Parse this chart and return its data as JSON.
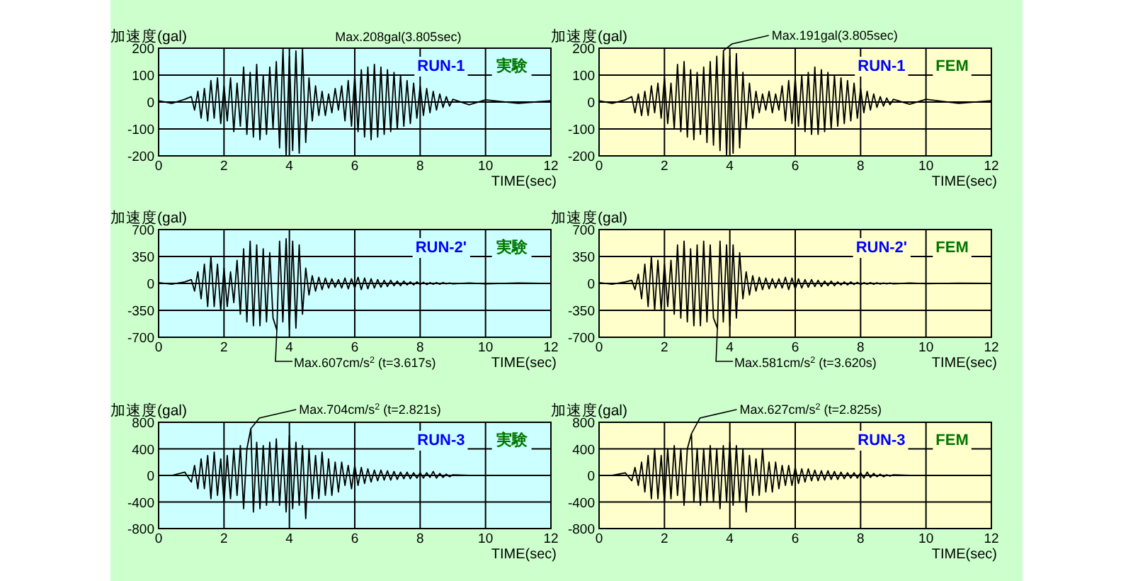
{
  "chart_data": [
    {
      "type": "line",
      "xlabel": "TIME(sec)",
      "ylabel": "加速度(gal)",
      "xlim": [
        0,
        12
      ],
      "xticks": [
        0,
        2,
        4,
        6,
        8,
        10,
        12
      ],
      "ylim": [
        -200,
        200
      ],
      "yticks": [
        -200,
        -100,
        0,
        100,
        200
      ],
      "grid": true,
      "annotations": [
        "RUN-1",
        "実験",
        "Max.208gal(3.805sec)"
      ],
      "x": [
        0,
        0.4,
        0.8,
        1,
        1.1,
        1.2,
        1.3,
        1.4,
        1.5,
        1.6,
        1.7,
        1.8,
        1.9,
        2,
        2.1,
        2.2,
        2.3,
        2.4,
        2.5,
        2.6,
        2.7,
        2.8,
        2.9,
        3,
        3.1,
        3.2,
        3.3,
        3.4,
        3.5,
        3.6,
        3.7,
        3.805,
        3.9,
        4,
        4.1,
        4.2,
        4.3,
        4.4,
        4.5,
        4.6,
        4.7,
        4.8,
        4.9,
        5,
        5.1,
        5.2,
        5.3,
        5.4,
        5.5,
        5.6,
        5.7,
        5.8,
        5.9,
        6,
        6.1,
        6.2,
        6.3,
        6.4,
        6.5,
        6.6,
        6.7,
        6.8,
        6.9,
        7,
        7.1,
        7.2,
        7.3,
        7.4,
        7.5,
        7.6,
        7.7,
        7.8,
        7.9,
        8,
        8.1,
        8.2,
        8.3,
        8.4,
        8.5,
        8.6,
        8.7,
        8.8,
        8.9,
        9,
        9.5,
        10,
        11,
        12
      ],
      "series": [
        {
          "color": "#000000",
          "values": [
            5,
            -5,
            10,
            20,
            -30,
            40,
            -60,
            50,
            -70,
            80,
            -60,
            90,
            -80,
            60,
            -70,
            90,
            -110,
            70,
            -90,
            130,
            -120,
            110,
            -130,
            140,
            -140,
            100,
            -120,
            130,
            -100,
            150,
            -170,
            200,
            -200,
            170,
            -180,
            190,
            -190,
            200,
            -150,
            90,
            -70,
            60,
            -50,
            40,
            -50,
            30,
            -40,
            50,
            -30,
            60,
            -70,
            80,
            -90,
            100,
            -110,
            120,
            -130,
            130,
            -140,
            140,
            -130,
            130,
            -120,
            120,
            -110,
            110,
            -100,
            100,
            -90,
            80,
            -80,
            70,
            -60,
            60,
            -50,
            50,
            -40,
            40,
            -30,
            30,
            -20,
            20,
            -15,
            10,
            -10,
            8,
            -5,
            5
          ]
        }
      ]
    },
    {
      "type": "line",
      "xlabel": "TIME(sec)",
      "ylabel": "加速度(gal)",
      "xlim": [
        0,
        12
      ],
      "xticks": [
        0,
        2,
        4,
        6,
        8,
        10,
        12
      ],
      "ylim": [
        -200,
        200
      ],
      "yticks": [
        -200,
        -100,
        0,
        100,
        200
      ],
      "grid": true,
      "annotations": [
        "RUN-1",
        "FEM",
        {
          "text": "Max.191gal(3.805sec)",
          "x": 3.805,
          "y": 191
        }
      ],
      "x": [
        0,
        0.4,
        0.8,
        1,
        1.1,
        1.2,
        1.3,
        1.4,
        1.5,
        1.6,
        1.7,
        1.8,
        1.9,
        2,
        2.1,
        2.2,
        2.3,
        2.4,
        2.5,
        2.6,
        2.7,
        2.8,
        2.9,
        3,
        3.1,
        3.2,
        3.3,
        3.4,
        3.5,
        3.6,
        3.7,
        3.805,
        3.9,
        4,
        4.1,
        4.2,
        4.3,
        4.4,
        4.5,
        4.6,
        4.7,
        4.8,
        4.9,
        5,
        5.1,
        5.2,
        5.3,
        5.4,
        5.5,
        5.6,
        5.7,
        5.8,
        5.9,
        6,
        6.1,
        6.2,
        6.3,
        6.4,
        6.5,
        6.6,
        6.7,
        6.8,
        6.9,
        7,
        7.1,
        7.2,
        7.3,
        7.4,
        7.5,
        7.6,
        7.7,
        7.8,
        7.9,
        8,
        8.1,
        8.2,
        8.3,
        8.4,
        8.5,
        8.6,
        8.7,
        8.8,
        8.9,
        9,
        9.5,
        10,
        11,
        12
      ],
      "series": [
        {
          "color": "#000000",
          "values": [
            5,
            -5,
            8,
            20,
            -40,
            30,
            -50,
            40,
            -50,
            60,
            -40,
            70,
            -60,
            90,
            -80,
            70,
            -100,
            140,
            -110,
            150,
            -130,
            120,
            -140,
            110,
            -120,
            130,
            -150,
            150,
            -160,
            170,
            -180,
            191,
            -200,
            170,
            -190,
            180,
            -170,
            110,
            -100,
            70,
            -60,
            40,
            -40,
            30,
            -30,
            40,
            -40,
            30,
            -30,
            60,
            -70,
            80,
            -80,
            90,
            -90,
            100,
            -110,
            110,
            -120,
            130,
            -120,
            120,
            -110,
            110,
            -100,
            100,
            -90,
            90,
            -80,
            80,
            -70,
            70,
            -60,
            50,
            -40,
            40,
            -30,
            30,
            -20,
            20,
            -15,
            15,
            -10,
            10,
            -8,
            10,
            -5,
            5
          ]
        }
      ]
    },
    {
      "type": "line",
      "xlabel": "TIME(sec)",
      "ylabel": "加速度(gal)",
      "xlim": [
        0,
        12
      ],
      "xticks": [
        0,
        2,
        4,
        6,
        8,
        10,
        12
      ],
      "ylim": [
        -700,
        700
      ],
      "yticks": [
        -700,
        -350,
        0,
        350,
        700
      ],
      "grid": true,
      "annotations": [
        "RUN-2'",
        "実験",
        {
          "text": "Max.607cm/s$^{2}$ (t=3.617s)",
          "x": 3.617,
          "y": -607
        }
      ],
      "x": [
        0,
        0.4,
        0.8,
        1,
        1.1,
        1.2,
        1.3,
        1.4,
        1.5,
        1.6,
        1.7,
        1.8,
        1.9,
        2,
        2.1,
        2.2,
        2.3,
        2.4,
        2.5,
        2.6,
        2.7,
        2.8,
        2.9,
        3,
        3.1,
        3.2,
        3.3,
        3.4,
        3.5,
        3.617,
        3.7,
        3.8,
        3.9,
        4,
        4.1,
        4.2,
        4.3,
        4.4,
        4.5,
        4.6,
        4.7,
        4.8,
        4.9,
        5,
        5.1,
        5.2,
        5.3,
        5.4,
        5.5,
        5.6,
        5.7,
        5.8,
        5.9,
        6,
        6.1,
        6.2,
        6.3,
        6.4,
        6.5,
        6.6,
        6.7,
        6.8,
        6.9,
        7,
        7.1,
        7.2,
        7.3,
        7.4,
        7.5,
        7.6,
        7.7,
        7.8,
        7.9,
        8,
        8.1,
        8.2,
        8.3,
        8.4,
        8.5,
        8.6,
        8.7,
        8.8,
        8.9,
        9,
        9.5,
        10,
        11,
        12
      ],
      "series": [
        {
          "color": "#000000",
          "values": [
            10,
            -10,
            20,
            50,
            -100,
            150,
            -200,
            250,
            -300,
            350,
            -300,
            250,
            -350,
            200,
            -300,
            150,
            -250,
            300,
            -400,
            450,
            -500,
            550,
            -550,
            500,
            -550,
            450,
            -500,
            400,
            -450,
            -607,
            550,
            -500,
            580,
            -600,
            550,
            -580,
            500,
            -400,
            200,
            -150,
            100,
            -100,
            80,
            -80,
            70,
            -60,
            60,
            -50,
            50,
            -60,
            70,
            -70,
            60,
            -60,
            80,
            -80,
            70,
            -70,
            60,
            -60,
            50,
            -50,
            40,
            -40,
            40,
            -30,
            30,
            -30,
            30,
            -20,
            20,
            -20,
            20,
            -15,
            15,
            -15,
            10,
            -10,
            10,
            -10,
            10,
            -5,
            5,
            -5,
            5,
            -5,
            5,
            0
          ]
        }
      ]
    },
    {
      "type": "line",
      "xlabel": "TIME(sec)",
      "ylabel": "加速度(gal)",
      "xlim": [
        0,
        12
      ],
      "xticks": [
        0,
        2,
        4,
        6,
        8,
        10,
        12
      ],
      "ylim": [
        -700,
        700
      ],
      "yticks": [
        -700,
        -350,
        0,
        350,
        700
      ],
      "grid": true,
      "annotations": [
        "RUN-2'",
        "FEM",
        {
          "text": "Max.581cm/s$^{2}$ (t=3.620s)",
          "x": 3.62,
          "y": -581
        }
      ],
      "x": [
        0,
        0.4,
        0.8,
        1,
        1.1,
        1.2,
        1.3,
        1.4,
        1.5,
        1.6,
        1.7,
        1.8,
        1.9,
        2,
        2.1,
        2.2,
        2.3,
        2.4,
        2.5,
        2.6,
        2.7,
        2.8,
        2.9,
        3,
        3.1,
        3.2,
        3.3,
        3.4,
        3.5,
        3.62,
        3.7,
        3.8,
        3.9,
        4,
        4.1,
        4.2,
        4.3,
        4.4,
        4.5,
        4.6,
        4.7,
        4.8,
        4.9,
        5,
        5.1,
        5.2,
        5.3,
        5.4,
        5.5,
        5.6,
        5.7,
        5.8,
        5.9,
        6,
        6.1,
        6.2,
        6.3,
        6.4,
        6.5,
        6.6,
        6.7,
        6.8,
        6.9,
        7,
        7.1,
        7.2,
        7.3,
        7.4,
        7.5,
        7.6,
        7.7,
        7.8,
        7.9,
        8,
        8.1,
        8.2,
        8.3,
        8.4,
        8.5,
        8.6,
        8.7,
        8.8,
        8.9,
        9,
        9.5,
        10,
        11,
        12
      ],
      "series": [
        {
          "color": "#000000",
          "values": [
            10,
            -10,
            20,
            40,
            -80,
            120,
            -200,
            250,
            -300,
            350,
            -350,
            300,
            -350,
            250,
            -300,
            300,
            -400,
            500,
            -450,
            550,
            -500,
            450,
            -550,
            500,
            -550,
            550,
            -500,
            500,
            -450,
            -581,
            550,
            -500,
            500,
            -550,
            500,
            -450,
            400,
            -200,
            150,
            -150,
            100,
            -100,
            80,
            -80,
            70,
            -70,
            60,
            -60,
            60,
            -60,
            80,
            -80,
            70,
            -70,
            60,
            -60,
            50,
            -50,
            50,
            -40,
            40,
            -40,
            30,
            -30,
            30,
            -30,
            20,
            -20,
            20,
            -20,
            20,
            -15,
            15,
            -15,
            10,
            -10,
            10,
            -10,
            8,
            -8,
            5,
            -5,
            5,
            -5,
            5,
            -3,
            3,
            0
          ]
        }
      ]
    },
    {
      "type": "line",
      "xlabel": "TIME(sec)",
      "ylabel": "加速度(gal)",
      "xlim": [
        0,
        12
      ],
      "xticks": [
        0,
        2,
        4,
        6,
        8,
        10,
        12
      ],
      "ylim": [
        -800,
        800
      ],
      "yticks": [
        -800,
        -400,
        0,
        400,
        800
      ],
      "grid": true,
      "annotations": [
        "RUN-3",
        "実験",
        {
          "text": "Max.704cm/s$^{2}$ (t=2.821s)",
          "x": 2.821,
          "y": 704
        }
      ],
      "x": [
        0,
        0.4,
        0.8,
        1,
        1.1,
        1.2,
        1.3,
        1.4,
        1.5,
        1.6,
        1.7,
        1.8,
        1.9,
        2,
        2.1,
        2.2,
        2.3,
        2.4,
        2.5,
        2.6,
        2.7,
        2.821,
        2.9,
        3,
        3.1,
        3.2,
        3.3,
        3.4,
        3.5,
        3.6,
        3.7,
        3.8,
        3.9,
        4,
        4.1,
        4.2,
        4.3,
        4.4,
        4.5,
        4.6,
        4.7,
        4.8,
        4.9,
        5,
        5.1,
        5.2,
        5.3,
        5.4,
        5.5,
        5.6,
        5.7,
        5.8,
        5.9,
        6,
        6.1,
        6.2,
        6.3,
        6.4,
        6.5,
        6.6,
        6.7,
        6.8,
        6.9,
        7,
        7.1,
        7.2,
        7.3,
        7.4,
        7.5,
        7.6,
        7.7,
        7.8,
        7.9,
        8,
        8.1,
        8.2,
        8.3,
        8.4,
        8.5,
        8.6,
        8.7,
        8.8,
        8.9,
        9,
        9.5,
        10,
        11,
        12
      ],
      "series": [
        {
          "color": "#000000",
          "values": [
            0,
            0,
            50,
            -100,
            150,
            -200,
            250,
            -200,
            300,
            -350,
            350,
            -300,
            250,
            -400,
            300,
            -350,
            400,
            -300,
            450,
            -500,
            400,
            704,
            -550,
            500,
            -500,
            450,
            -450,
            500,
            -400,
            550,
            -450,
            400,
            -550,
            600,
            -500,
            500,
            -450,
            450,
            -650,
            400,
            -350,
            300,
            -350,
            350,
            -300,
            250,
            -300,
            200,
            -250,
            200,
            -150,
            150,
            -200,
            150,
            -150,
            120,
            -120,
            100,
            -100,
            80,
            -80,
            80,
            -70,
            70,
            -70,
            60,
            -60,
            50,
            -50,
            50,
            -50,
            40,
            -40,
            40,
            -40,
            40,
            -30,
            60,
            -40,
            30,
            -30,
            20,
            -20,
            10,
            0,
            0,
            0,
            0
          ]
        }
      ]
    },
    {
      "type": "line",
      "xlabel": "TIME(sec)",
      "ylabel": "加速度(gal)",
      "xlim": [
        0,
        12
      ],
      "xticks": [
        0,
        2,
        4,
        6,
        8,
        10,
        12
      ],
      "ylim": [
        -800,
        800
      ],
      "yticks": [
        -800,
        -400,
        0,
        400,
        800
      ],
      "grid": true,
      "annotations": [
        "RUN-3",
        "FEM",
        {
          "text": "Max.627cm/s$^{2}$ (t=2.825s)",
          "x": 2.825,
          "y": 627
        }
      ],
      "x": [
        0,
        0.4,
        0.8,
        1,
        1.1,
        1.2,
        1.3,
        1.4,
        1.5,
        1.6,
        1.7,
        1.8,
        1.9,
        2,
        2.1,
        2.2,
        2.3,
        2.4,
        2.5,
        2.6,
        2.7,
        2.825,
        2.9,
        3,
        3.1,
        3.2,
        3.3,
        3.4,
        3.5,
        3.6,
        3.7,
        3.8,
        3.9,
        4,
        4.1,
        4.2,
        4.3,
        4.4,
        4.5,
        4.6,
        4.7,
        4.8,
        4.9,
        5,
        5.1,
        5.2,
        5.3,
        5.4,
        5.5,
        5.6,
        5.7,
        5.8,
        5.9,
        6,
        6.1,
        6.2,
        6.3,
        6.4,
        6.5,
        6.6,
        6.7,
        6.8,
        6.9,
        7,
        7.1,
        7.2,
        7.3,
        7.4,
        7.5,
        7.6,
        7.7,
        7.8,
        7.9,
        8,
        8.1,
        8.2,
        8.3,
        8.4,
        8.5,
        8.6,
        8.7,
        8.8,
        8.9,
        9,
        9.5,
        10,
        11,
        12
      ],
      "series": [
        {
          "color": "#000000",
          "values": [
            0,
            0,
            40,
            -80,
            120,
            -150,
            200,
            -250,
            300,
            -350,
            400,
            -350,
            300,
            -400,
            400,
            -350,
            450,
            -300,
            400,
            -450,
            400,
            627,
            -400,
            400,
            -450,
            400,
            -400,
            450,
            -400,
            400,
            -500,
            450,
            -400,
            500,
            -450,
            450,
            -400,
            400,
            -550,
            300,
            -300,
            250,
            -300,
            400,
            -250,
            200,
            -250,
            200,
            -200,
            150,
            -150,
            150,
            -150,
            120,
            -120,
            100,
            -100,
            100,
            -80,
            80,
            -80,
            70,
            -70,
            70,
            -60,
            60,
            -60,
            50,
            -50,
            40,
            -40,
            40,
            -40,
            40,
            -40,
            50,
            -30,
            30,
            -20,
            20,
            -20,
            10,
            -10,
            10,
            0,
            0,
            0,
            0
          ]
        }
      ]
    }
  ]
}
